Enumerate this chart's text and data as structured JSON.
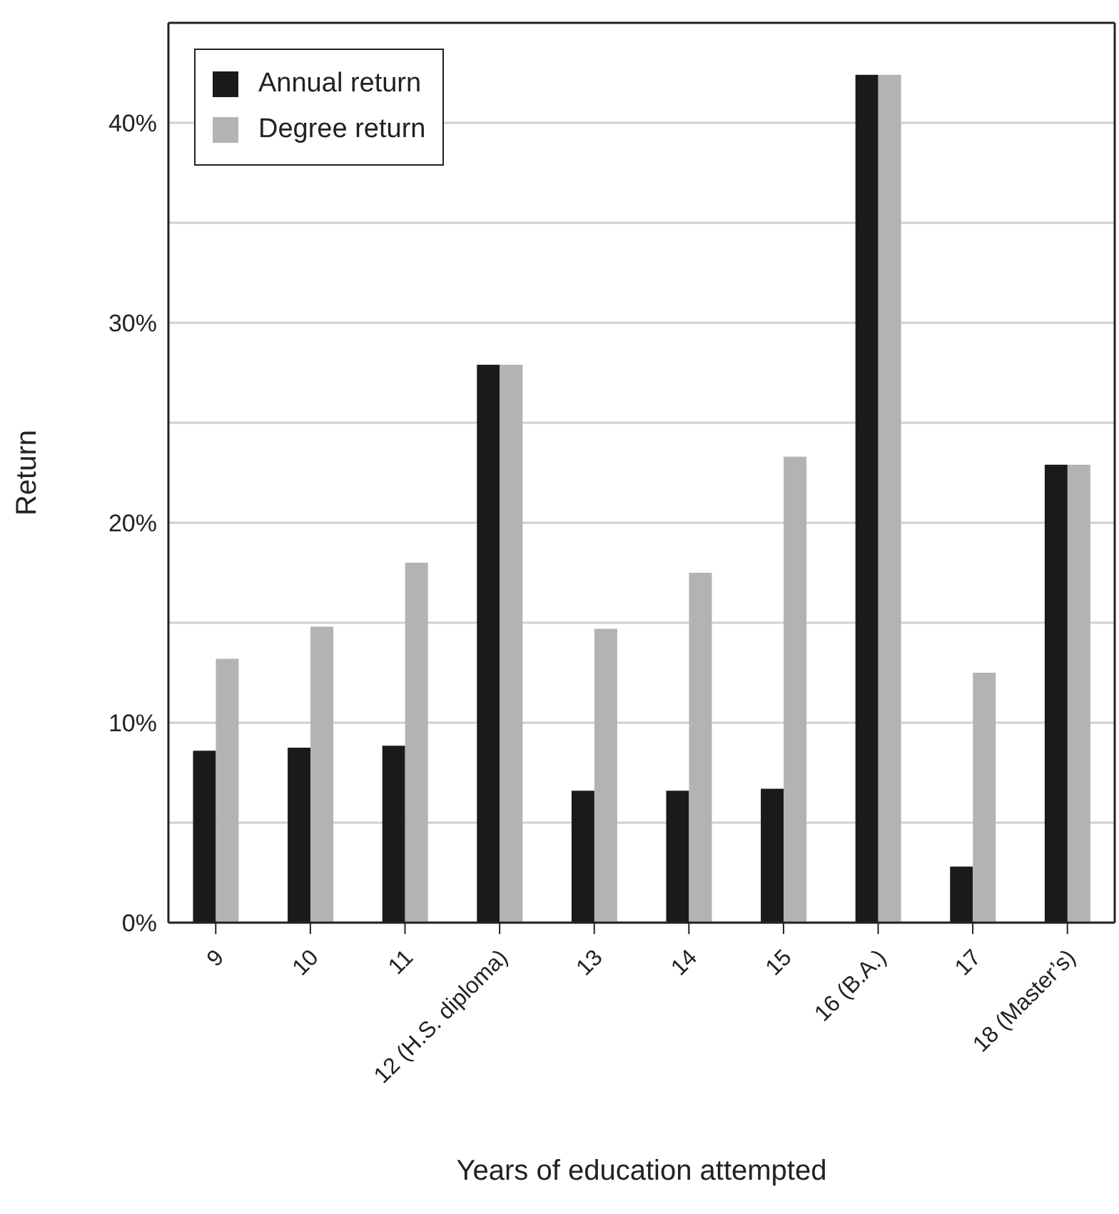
{
  "chart_data": {
    "type": "bar",
    "xlabel": "Years of education attempted",
    "ylabel": "Return",
    "categories": [
      "9",
      "10",
      "11",
      "12 (H.S. diploma)",
      "13",
      "14",
      "15",
      "16 (B.A.)",
      "17",
      "18 (Master’s)"
    ],
    "series": [
      {
        "name": "Annual return",
        "color": "#1a1a1a",
        "values": [
          8.6,
          8.75,
          8.85,
          27.9,
          6.6,
          6.6,
          6.7,
          42.4,
          2.8,
          22.9
        ]
      },
      {
        "name": "Degree return",
        "color": "#b3b3b3",
        "values": [
          13.2,
          14.8,
          18.0,
          27.9,
          14.7,
          17.5,
          23.3,
          42.4,
          12.5,
          22.9
        ]
      }
    ],
    "ylim": [
      0,
      45
    ],
    "yticks": [
      {
        "value": 0,
        "label": "0%"
      },
      {
        "value": 5,
        "label": null
      },
      {
        "value": 10,
        "label": "10%"
      },
      {
        "value": 15,
        "label": null
      },
      {
        "value": 20,
        "label": "20%"
      },
      {
        "value": 25,
        "label": null
      },
      {
        "value": 30,
        "label": "30%"
      },
      {
        "value": 35,
        "label": null
      },
      {
        "value": 40,
        "label": "40%"
      }
    ],
    "grid": "y",
    "legend": "top left"
  }
}
